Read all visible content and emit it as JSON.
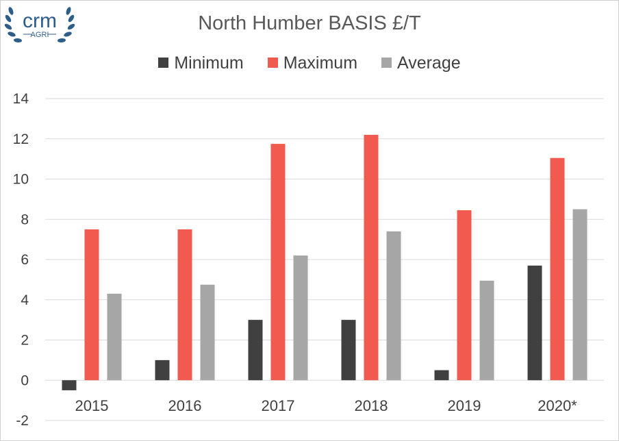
{
  "logo": {
    "name": "crm",
    "sub": "AGRI",
    "color": "#2f5d8a"
  },
  "chart_data": {
    "type": "bar",
    "title": "North Humber BASIS £/T",
    "xlabel": "",
    "ylabel": "",
    "categories": [
      "2015",
      "2016",
      "2017",
      "2018",
      "2019",
      "2020*"
    ],
    "series": [
      {
        "name": "Minimum",
        "color": "#404040",
        "values": [
          -0.5,
          1.0,
          3.0,
          3.0,
          0.5,
          5.7
        ]
      },
      {
        "name": "Maximum",
        "color": "#f05a4f",
        "values": [
          7.5,
          7.5,
          11.75,
          12.2,
          8.45,
          11.05
        ]
      },
      {
        "name": "Average",
        "color": "#a6a6a6",
        "values": [
          4.3,
          4.75,
          6.2,
          7.4,
          4.95,
          8.5
        ]
      }
    ],
    "ylim": [
      -2,
      14
    ],
    "yticks": [
      "-2",
      "0",
      "2",
      "4",
      "6",
      "8",
      "10",
      "12",
      "14"
    ],
    "grid": true,
    "legend_position": "top"
  }
}
